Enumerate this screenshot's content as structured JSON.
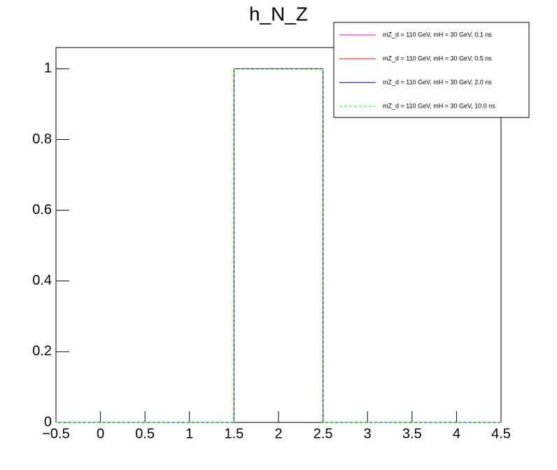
{
  "chart_data": {
    "type": "histogram",
    "title": "h_N_Z",
    "bins": [
      -0.5,
      0.5,
      1.5,
      2.5,
      3.5,
      4.5
    ],
    "series": [
      {
        "name": "mZ_d = 110 GeV, mH = 30 GeV, 0.1 ns",
        "color": "#ff00ff",
        "linestyle": "solid",
        "values": [
          0,
          0,
          1,
          0,
          0
        ]
      },
      {
        "name": "mZ_d = 110 GeV, mH = 30 GeV, 0.5 ns",
        "color": "#ff0000",
        "linestyle": "solid",
        "values": [
          0,
          0,
          1,
          0,
          0
        ]
      },
      {
        "name": "mZ_d = 110 GeV, mH = 30 GeV, 2.0 ns",
        "color": "#000080",
        "linestyle": "solid",
        "values": [
          0,
          0,
          1,
          0,
          0
        ]
      },
      {
        "name": "mZ_d = 110 GeV, mH = 30 GeV, 10.0 ns",
        "color": "#00ff00",
        "linestyle": "dashed",
        "values": [
          0,
          0,
          1,
          0,
          0
        ]
      }
    ],
    "xlim": [
      -0.5,
      4.5
    ],
    "xticks": [
      {
        "value": -0.5,
        "label": "−0.5"
      },
      0,
      0.5,
      1,
      1.5,
      2,
      2.5,
      3,
      3.5,
      4,
      4.5
    ],
    "ylim": [
      0,
      1.06
    ],
    "yticks": [
      0,
      0.2,
      0.4,
      0.6,
      0.8,
      1
    ],
    "legend": "top-right"
  }
}
